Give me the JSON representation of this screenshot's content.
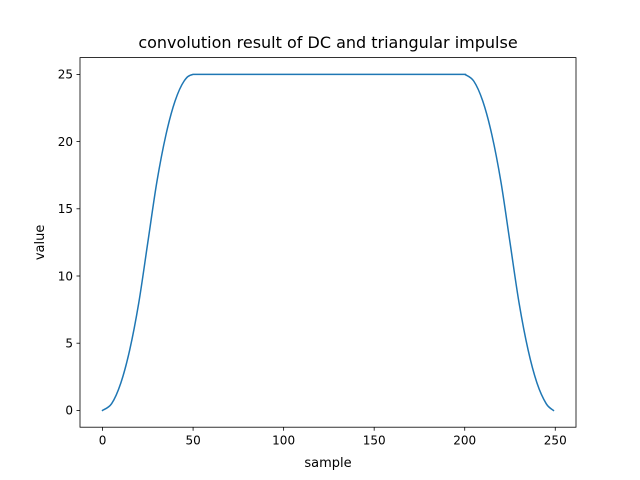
{
  "chart_data": {
    "type": "line",
    "title": "convolution result of DC and triangular impulse",
    "xlabel": "sample",
    "ylabel": "value",
    "xlim": [
      -12.45,
      261.45
    ],
    "ylim": [
      -1.25,
      26.25
    ],
    "xticks": [
      0,
      50,
      100,
      150,
      200,
      250
    ],
    "yticks": [
      0,
      5,
      10,
      15,
      20,
      25
    ],
    "grid": false,
    "legend": "none",
    "series": [
      {
        "color": "#1f77b4",
        "x": [
          0,
          5,
          10,
          15,
          20,
          25,
          30,
          35,
          40,
          45,
          50,
          60,
          80,
          100,
          120,
          140,
          160,
          180,
          199,
          200,
          205,
          210,
          215,
          220,
          225,
          230,
          235,
          240,
          245,
          249
        ],
        "y": [
          0,
          0.5,
          2.0,
          4.5,
          8.0,
          12.5,
          17.0,
          20.5,
          23.0,
          24.5,
          25,
          25,
          25,
          25,
          25,
          25,
          25,
          25,
          25,
          25,
          24.5,
          23.0,
          20.5,
          17.0,
          12.5,
          8.0,
          4.5,
          2.0,
          0.5,
          0
        ]
      }
    ]
  }
}
